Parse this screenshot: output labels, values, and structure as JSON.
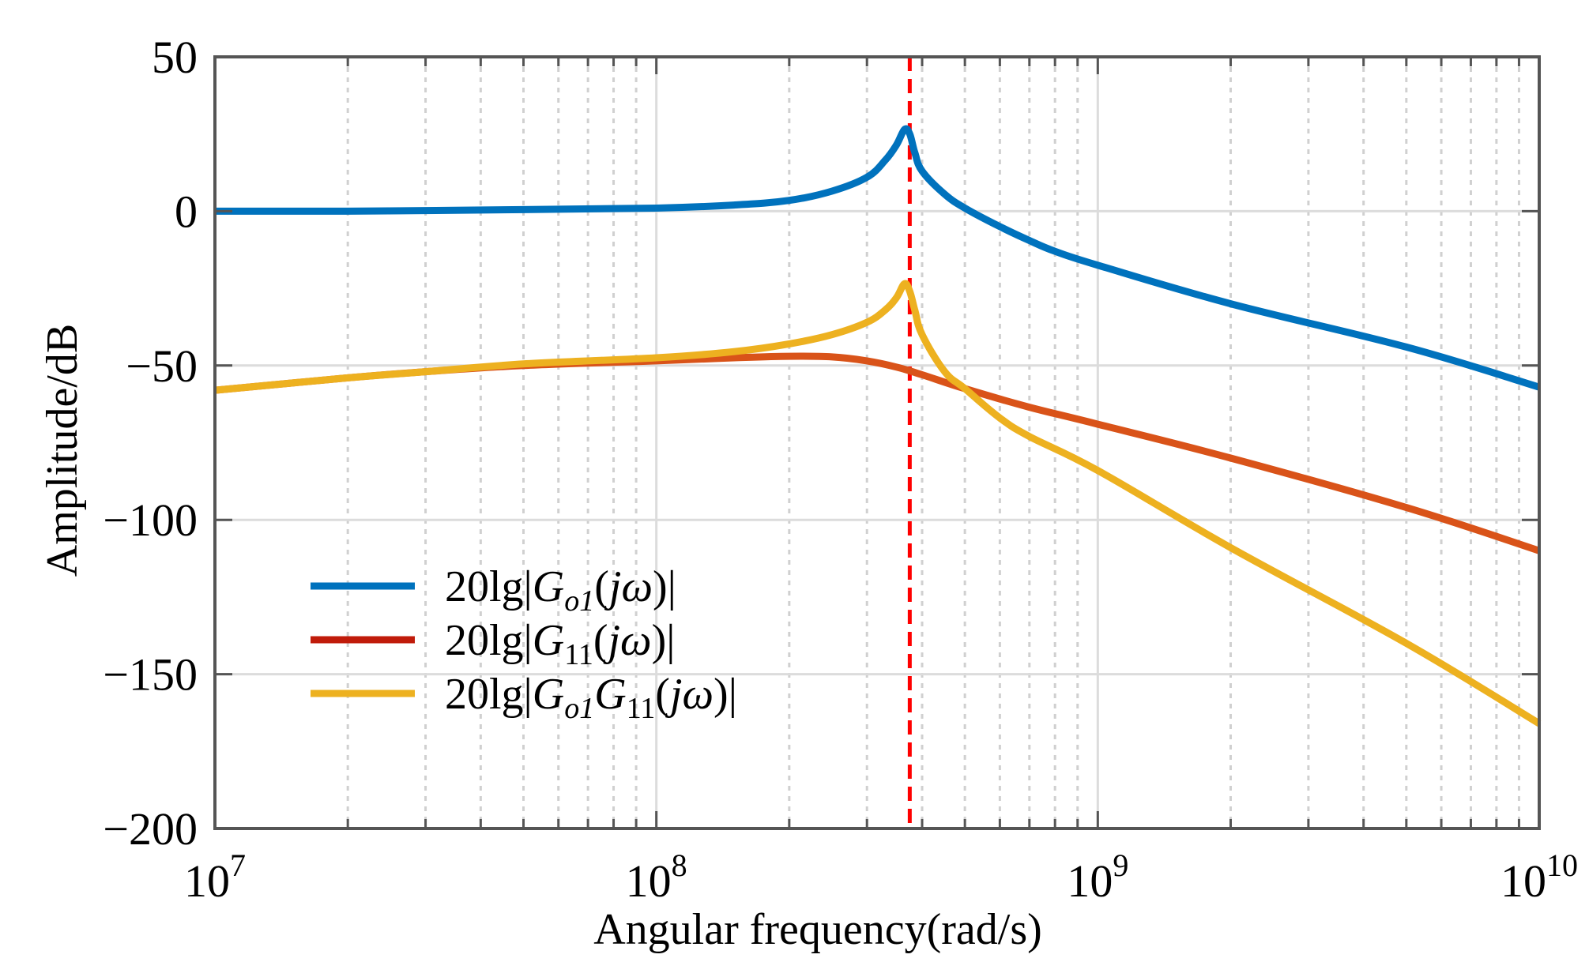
{
  "chart_data": {
    "type": "line",
    "title": "",
    "xlabel": "Angular frequency(rad/s)",
    "ylabel": "Amplitude/dB",
    "xscale": "log",
    "xlim": [
      10000000,
      10000000000
    ],
    "ylim": [
      -200,
      50
    ],
    "grid": true,
    "x_ticks": [
      {
        "value": 10000000,
        "base": "10",
        "exp": "7"
      },
      {
        "value": 100000000,
        "base": "10",
        "exp": "8"
      },
      {
        "value": 1000000000,
        "base": "10",
        "exp": "9"
      },
      {
        "value": 10000000000,
        "base": "10",
        "exp": "10"
      }
    ],
    "y_ticks": [
      {
        "value": 50,
        "label": "50"
      },
      {
        "value": 0,
        "label": "0"
      },
      {
        "value": -50,
        "label": "−50"
      },
      {
        "value": -100,
        "label": "−100"
      },
      {
        "value": -150,
        "label": "−150"
      },
      {
        "value": -200,
        "label": "−200"
      }
    ],
    "legend_position": "lower-left",
    "series": [
      {
        "name": "20lg|Go1(jω)|",
        "legend_parts": [
          {
            "t": "20lg|",
            "s": "n"
          },
          {
            "t": "G",
            "s": "i"
          },
          {
            "t": "o1",
            "s": "sub"
          },
          {
            "t": "(",
            "s": "n"
          },
          {
            "t": "jω",
            "s": "i"
          },
          {
            "t": ")|",
            "s": "n"
          }
        ],
        "color": "#0072BD",
        "legend_color": "#0072BD",
        "x": [
          10000000.0,
          20000000.0,
          50000000.0,
          100000000.0,
          150000000.0,
          200000000.0,
          250000000.0,
          300000000.0,
          330000000.0,
          350000000.0,
          365000000.0,
          375000000.0,
          385000000.0,
          400000000.0,
          450000000.0,
          500000000.0,
          600000000.0,
          700000000.0,
          800000000.0,
          1000000000.0,
          2000000000.0,
          5000000000.0,
          10000000000.0
        ],
        "y": [
          0,
          0,
          0.5,
          1,
          2,
          3.5,
          6.5,
          11,
          16.5,
          21.5,
          26.5,
          25,
          19,
          13,
          5.5,
          1,
          -5,
          -9.5,
          -13,
          -17.5,
          -30,
          -44,
          -57
        ]
      },
      {
        "name": "20lg|G11(jω)|",
        "legend_parts": [
          {
            "t": "20lg|",
            "s": "n"
          },
          {
            "t": "G",
            "s": "i"
          },
          {
            "t": "11",
            "s": "sub"
          },
          {
            "t": "(",
            "s": "n"
          },
          {
            "t": "jω",
            "s": "i"
          },
          {
            "t": ")|",
            "s": "n"
          }
        ],
        "color": "#D95319",
        "legend_color": "#C01B0A",
        "x": [
          10000000.0,
          20000000.0,
          30000000.0,
          50000000.0,
          100000000.0,
          150000000.0,
          200000000.0,
          250000000.0,
          300000000.0,
          350000000.0,
          400000000.0,
          500000000.0,
          700000000.0,
          1000000000.0,
          2000000000.0,
          5000000000.0,
          10000000000.0
        ],
        "y": [
          -58,
          -54,
          -52,
          -50,
          -48.5,
          -47.5,
          -47,
          -47.2,
          -48.5,
          -50.5,
          -53,
          -57.5,
          -63.5,
          -69,
          -80,
          -96,
          -110
        ]
      },
      {
        "name": "20lg|Go1G11(jω)|",
        "legend_parts": [
          {
            "t": "20lg|",
            "s": "n"
          },
          {
            "t": "G",
            "s": "i"
          },
          {
            "t": "o1",
            "s": "sub"
          },
          {
            "t": "G",
            "s": "i"
          },
          {
            "t": "11",
            "s": "sub"
          },
          {
            "t": "(",
            "s": "n"
          },
          {
            "t": "jω",
            "s": "i"
          },
          {
            "t": ")|",
            "s": "n"
          }
        ],
        "color": "#EDB120",
        "legend_color": "#EDB120",
        "x": [
          10000000.0,
          20000000.0,
          30000000.0,
          50000000.0,
          100000000.0,
          150000000.0,
          200000000.0,
          250000000.0,
          300000000.0,
          330000000.0,
          350000000.0,
          365000000.0,
          375000000.0,
          385000000.0,
          400000000.0,
          450000000.0,
          500000000.0,
          600000000.0,
          700000000.0,
          1000000000.0,
          2000000000.0,
          5000000000.0,
          10000000000.0
        ],
        "y": [
          -58,
          -54,
          -52,
          -49.5,
          -47.5,
          -45.5,
          -43,
          -40,
          -36,
          -32,
          -28,
          -23.5,
          -26,
          -32,
          -40,
          -52,
          -57.5,
          -67,
          -73,
          -84,
          -109,
          -140,
          -166
        ]
      }
    ],
    "reference_lines": [
      {
        "type": "vertical",
        "x": 375000000,
        "color": "#FF0000",
        "style": "dashed"
      }
    ]
  }
}
